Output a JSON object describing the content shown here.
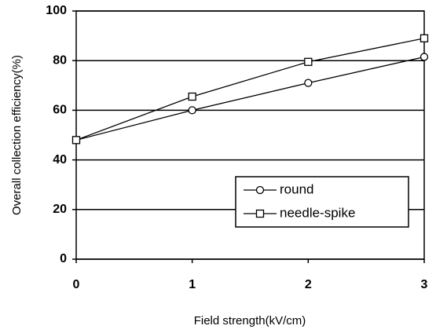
{
  "chart_data": {
    "type": "line",
    "x_label": "Field strength(kV/cm)",
    "y_label": "Overall collection efficiency(%)",
    "x": [
      0,
      1,
      2,
      3
    ],
    "xlim": [
      0,
      3
    ],
    "xticks": [
      0,
      1,
      2,
      3
    ],
    "ylim": [
      0,
      100
    ],
    "yticks": [
      0,
      20,
      40,
      60,
      80,
      100
    ],
    "grid": true,
    "legend": "lower right",
    "series": [
      {
        "name": "round",
        "color": "#000000",
        "marker": "circle",
        "values": [
          48,
          60,
          71,
          81.5
        ]
      },
      {
        "name": "needle-spike",
        "color": "#000000",
        "marker": "square",
        "values": [
          48,
          65.5,
          79.5,
          89
        ]
      }
    ]
  }
}
